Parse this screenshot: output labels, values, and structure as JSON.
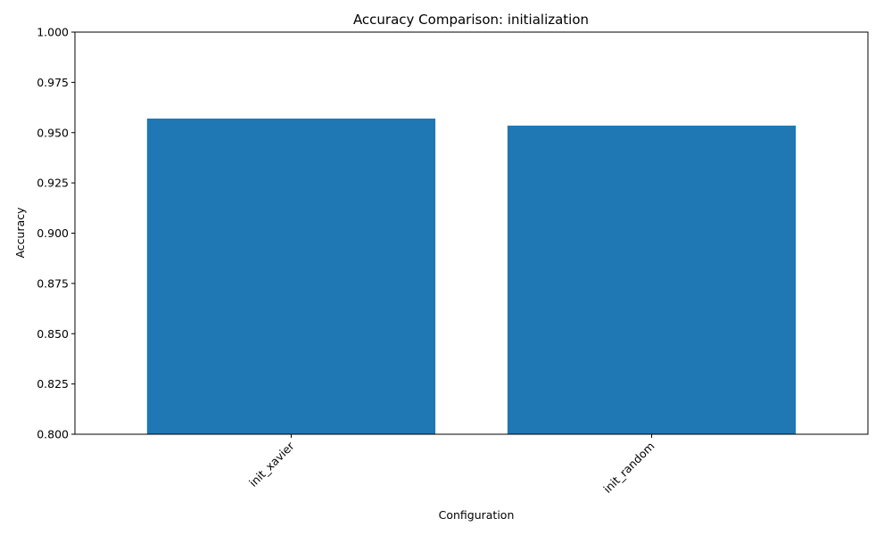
{
  "chart_data": {
    "type": "bar",
    "title": "Accuracy Comparison: initialization",
    "xlabel": "Configuration",
    "ylabel": "Accuracy",
    "categories": [
      "init_xavier",
      "init_random"
    ],
    "values": [
      0.957,
      0.9535
    ],
    "ylim": [
      0.8,
      1.0
    ],
    "yticks": [
      "0.800",
      "0.825",
      "0.850",
      "0.875",
      "0.900",
      "0.925",
      "0.950",
      "0.975",
      "1.000"
    ],
    "xtick_rotation": 45,
    "bar_color": "#1f77b4",
    "grid": false,
    "legend": "none"
  }
}
